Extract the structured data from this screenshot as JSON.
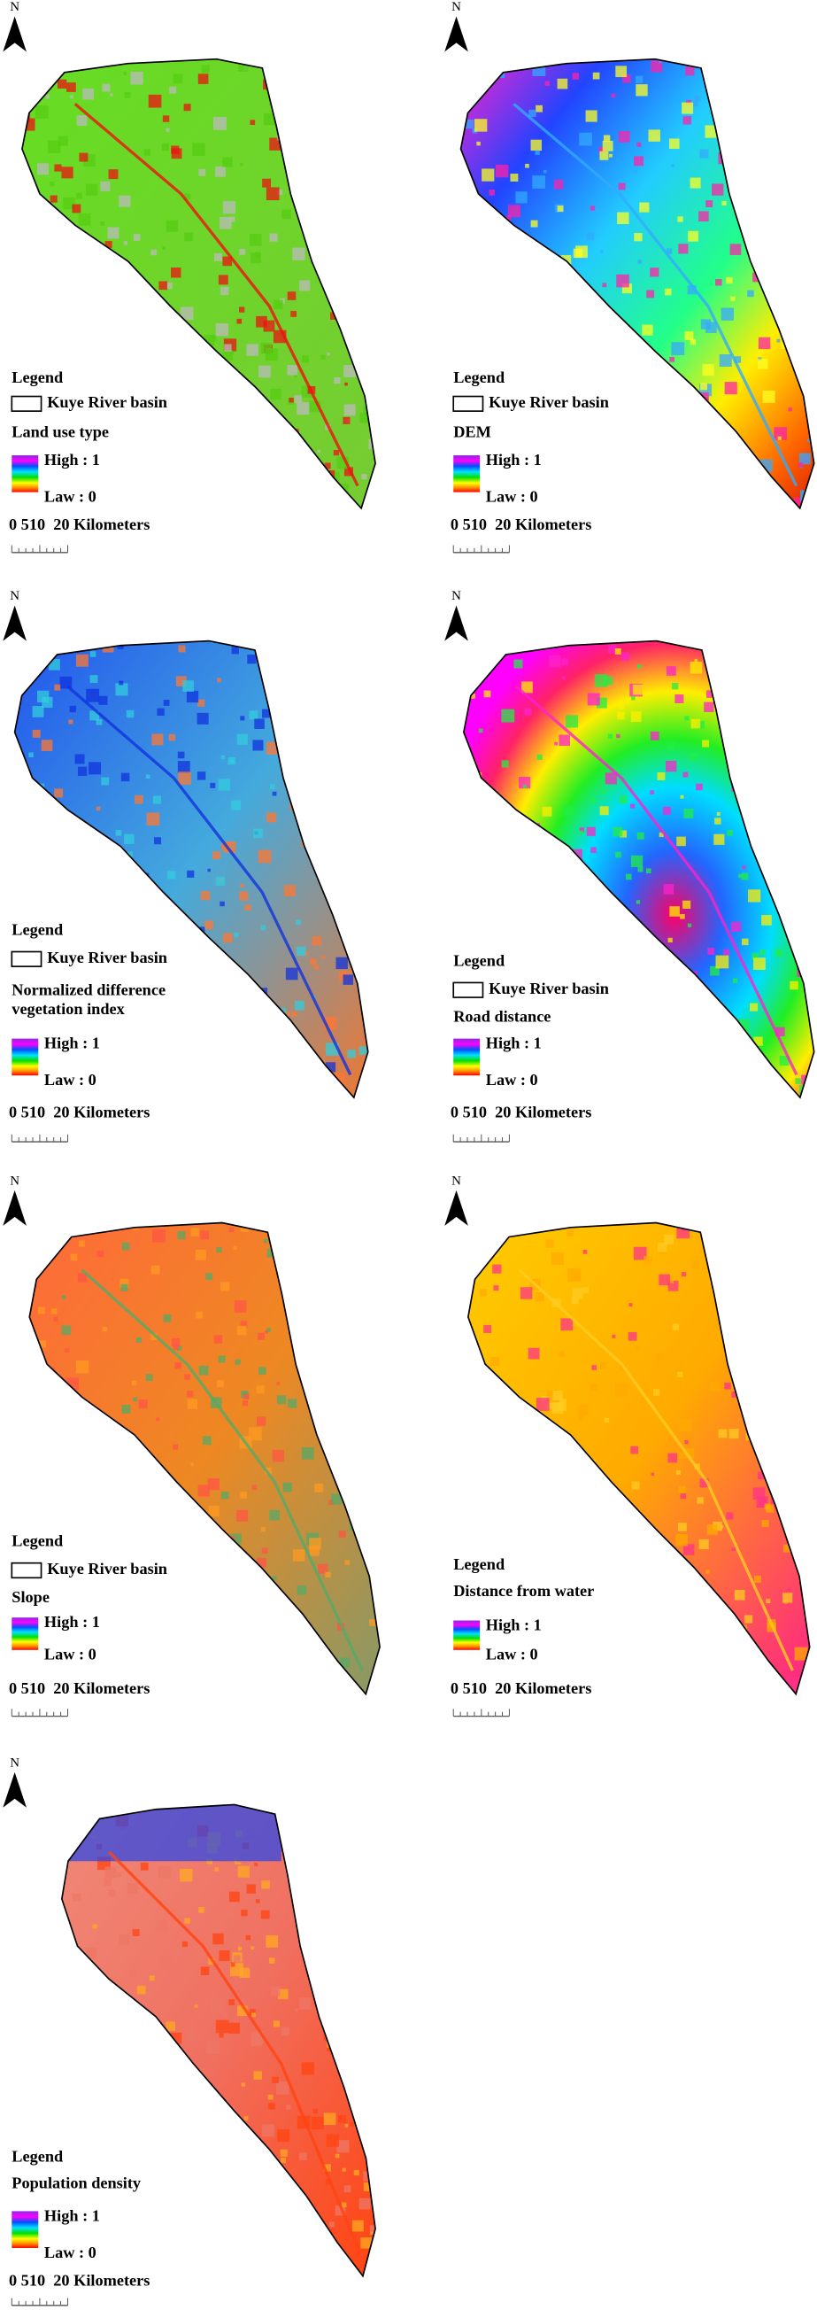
{
  "panels": [
    {
      "north": "N",
      "legend": "Legend",
      "basin": "Kuye River basin",
      "layer": "Land use type",
      "high": "High : 1",
      "low": "Law : 0",
      "scale": "0 510  20 Kilometers"
    },
    {
      "north": "N",
      "legend": "Legend",
      "basin": "Kuye River basin",
      "layer": "DEM",
      "high": "High : 1",
      "low": "Law : 0",
      "scale": "0 510  20 Kilometers"
    },
    {
      "north": "N",
      "legend": "Legend",
      "basin": "Kuye River basin",
      "layer": [
        "Normalized difference",
        "vegetation index"
      ],
      "high": "High : 1",
      "low": "Law : 0",
      "scale": "0 510  20 Kilometers"
    },
    {
      "north": "N",
      "legend": "Legend",
      "basin": "Kuye River basin",
      "layer": "Road distance",
      "high": "High : 1",
      "low": "Law : 0",
      "scale": "0 510  20 Kilometers"
    },
    {
      "north": "N",
      "legend": "Legend",
      "basin": "Kuye River basin",
      "layer": "Slope",
      "high": "High : 1",
      "low": "Law : 0",
      "scale": "0 510  20 Kilometers"
    },
    {
      "north": "N",
      "legend": "Legend",
      "layer": "Distance from water",
      "high": "High : 1",
      "low": "Law : 0",
      "scale": "0 510  20 Kilometers"
    },
    {
      "north": "N",
      "legend": "Legend",
      "layer": "Population density",
      "high": "High : 1",
      "low": "Law : 0",
      "scale": "0 510  20 Kilometers"
    }
  ]
}
